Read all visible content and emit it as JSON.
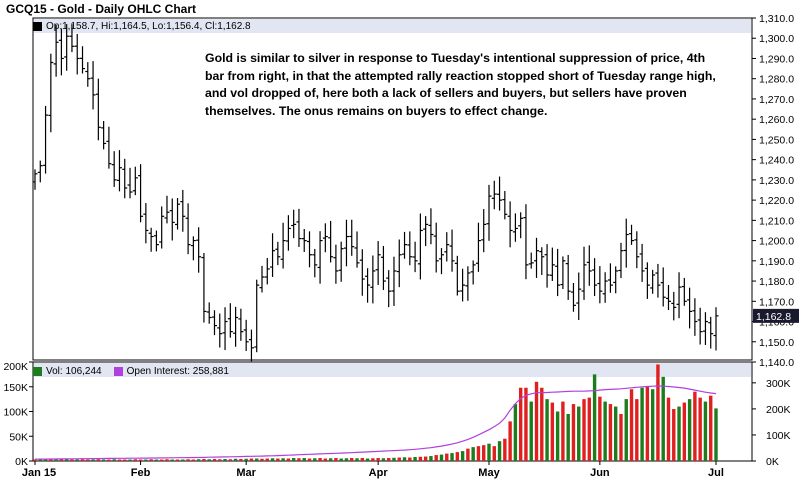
{
  "title": "GCQ15 - Gold - Daily OHLC Chart",
  "ohlc_legend": "Op:1,158.7, Hi:1,164.5, Lo:1,156.4, Cl:1,162.8",
  "annotation": "Gold is similar to silver in response to Tuesday's intentional suppression of price, 4th bar from right, in that the attempted rally reaction stopped short of Tuesday range high, and vol dropped of, here both a lack of sellers and buyers, but sellers have proven themselves.  The onus remains on buyers to effect change.",
  "colors": {
    "panel_bg": "#ffffff",
    "header_band": "#e1e6f2",
    "ohlc_bar": "#000000",
    "price_tag_bg": "#1a1a2e",
    "volume_up": "#1e7b1e",
    "volume_down": "#e02020",
    "open_interest": "#b040e0",
    "grid": "#d9d9d9",
    "border": "#000000",
    "outer_bg": "#ffffff"
  },
  "chart_data": [
    {
      "type": "ohlc",
      "title": "GCQ15 - Gold - Daily OHLC Chart",
      "x_tick_labels": [
        "Jan 15",
        "Feb",
        "Mar",
        "Apr",
        "May",
        "Jun",
        "Jul"
      ],
      "x_tick_days": [
        0,
        20,
        40,
        65,
        86,
        107,
        129
      ],
      "y_tick_labels": [
        "1,140.0",
        "1,150.0",
        "1,160.0",
        "1,170.0",
        "1,180.0",
        "1,190.0",
        "1,200.0",
        "1,210.0",
        "1,220.0",
        "1,230.0",
        "1,240.0",
        "1,250.0",
        "1,260.0",
        "1,270.0",
        "1,280.0",
        "1,290.0",
        "1,300.0",
        "1,310.0"
      ],
      "ylim": [
        1140,
        1310
      ],
      "last_price_label": "1,162.8",
      "last_price": 1162.8,
      "close_series": [
        1233,
        1237,
        1262,
        1288,
        1298,
        1290,
        1301,
        1296,
        1290,
        1285,
        1280,
        1272,
        1256,
        1248,
        1238,
        1230,
        1236,
        1226,
        1224,
        1231,
        1212,
        1205,
        1202,
        1198,
        1212,
        1214,
        1209,
        1218,
        1212,
        1198,
        1200,
        1192,
        1165,
        1162,
        1158,
        1154,
        1160,
        1155,
        1162,
        1155,
        1150,
        1147,
        1178,
        1182,
        1186,
        1195,
        1192,
        1200,
        1206,
        1208,
        1201,
        1200,
        1193,
        1188,
        1200,
        1202,
        1192,
        1185,
        1196,
        1202,
        1197,
        1189,
        1181,
        1178,
        1185,
        1193,
        1180,
        1175,
        1185,
        1193,
        1198,
        1192,
        1190,
        1205,
        1208,
        1203,
        1190,
        1193,
        1198,
        1190,
        1175,
        1178,
        1184,
        1188,
        1200,
        1208,
        1222,
        1223,
        1220,
        1213,
        1205,
        1206,
        1211,
        1188,
        1189,
        1195,
        1192,
        1183,
        1188,
        1178,
        1190,
        1175,
        1168,
        1176,
        1188,
        1185,
        1178,
        1175,
        1180,
        1178,
        1185,
        1195,
        1203,
        1200,
        1192,
        1185,
        1178,
        1183,
        1178,
        1172,
        1170,
        1167,
        1177,
        1170,
        1165,
        1160,
        1155,
        1160,
        1154,
        1162.8
      ]
    },
    {
      "type": "bar+line",
      "series": [
        {
          "name": "Vol: 106,244"
        },
        {
          "name": "Open Interest: 258,881"
        }
      ],
      "y_left_tick_labels": [
        "0K",
        "50K",
        "100K",
        "150K",
        "200K"
      ],
      "ylim_left": [
        0,
        200000
      ],
      "y_right_tick_labels": [
        "0K",
        "100K",
        "200K",
        "300K"
      ],
      "ylim_right": [
        0,
        380000
      ],
      "volume": [
        3000,
        3000,
        3500,
        3000,
        3500,
        3000,
        4000,
        3000,
        3000,
        3500,
        3000,
        3000,
        3500,
        3000,
        3000,
        3500,
        3000,
        3000,
        3000,
        3500,
        3000,
        3000,
        3500,
        3000,
        3000,
        3500,
        3000,
        3000,
        3000,
        3500,
        3000,
        3500,
        4000,
        3500,
        4000,
        3500,
        4000,
        3500,
        4500,
        4000,
        4500,
        5000,
        5000,
        4500,
        5000,
        5500,
        5000,
        5500,
        5000,
        6000,
        5500,
        6000,
        5000,
        5500,
        6000,
        5000,
        5500,
        6000,
        5000,
        5500,
        6000,
        5500,
        6000,
        5000,
        5500,
        6000,
        5500,
        6000,
        6500,
        7000,
        7500,
        7000,
        8000,
        8500,
        9000,
        10000,
        12000,
        13000,
        15000,
        16000,
        18000,
        20000,
        25000,
        28000,
        30000,
        32000,
        35000,
        30000,
        40000,
        45000,
        80000,
        115000,
        148000,
        148000,
        120000,
        160000,
        148000,
        125000,
        118000,
        100000,
        120000,
        95000,
        115000,
        110000,
        125000,
        128000,
        175000,
        130000,
        120000,
        115000,
        110000,
        95000,
        125000,
        145000,
        125000,
        148000,
        150000,
        145000,
        195000,
        170000,
        128000,
        105000,
        110000,
        118000,
        125000,
        140000,
        128000,
        120000,
        132000,
        106244
      ],
      "volume_up": [
        false,
        true,
        true,
        false,
        true,
        false,
        true,
        false,
        true,
        false,
        false,
        true,
        false,
        true,
        false,
        true,
        false,
        false,
        true,
        false,
        false,
        true,
        false,
        true,
        false,
        false,
        true,
        false,
        true,
        false,
        false,
        true,
        false,
        true,
        false,
        false,
        true,
        false,
        true,
        false,
        true,
        false,
        true,
        false,
        false,
        true,
        false,
        true,
        false,
        true,
        false,
        true,
        false,
        true,
        false,
        false,
        true,
        false,
        true,
        true,
        false,
        true,
        false,
        true,
        false,
        false,
        true,
        false,
        true,
        false,
        true,
        false,
        true,
        false,
        false,
        true,
        false,
        true,
        false,
        true,
        false,
        true,
        false,
        true,
        false,
        false,
        true,
        false,
        true,
        false,
        false,
        true,
        false,
        false,
        true,
        false,
        false,
        true,
        false,
        true,
        false,
        true,
        false,
        true,
        false,
        false,
        true,
        false,
        true,
        false,
        true,
        false,
        true,
        false,
        false,
        true,
        false,
        true,
        false,
        true,
        false,
        false,
        true,
        false,
        true,
        false,
        false,
        true,
        false,
        true
      ],
      "open_interest": [
        7000,
        7200,
        7400,
        7600,
        7800,
        8000,
        8200,
        8400,
        8600,
        8800,
        9000,
        9200,
        9400,
        9600,
        9800,
        10000,
        10200,
        10400,
        10600,
        10800,
        11000,
        11200,
        11400,
        11600,
        11800,
        12000,
        12200,
        12500,
        12800,
        13000,
        13300,
        13600,
        14000,
        14400,
        14800,
        15200,
        15600,
        16000,
        16500,
        17000,
        17500,
        18000,
        18500,
        19000,
        19500,
        20000,
        20800,
        21600,
        22400,
        23200,
        24000,
        24800,
        25600,
        26400,
        27200,
        28000,
        28800,
        29600,
        30400,
        31200,
        32000,
        33000,
        34000,
        35000,
        36000,
        37000,
        38000,
        39000,
        40000,
        41000,
        42000,
        43500,
        45000,
        47000,
        49000,
        51000,
        54000,
        57000,
        61000,
        65000,
        70000,
        76000,
        83000,
        91000,
        100000,
        110000,
        120000,
        132000,
        145000,
        165000,
        195000,
        220000,
        240000,
        252000,
        258000,
        262000,
        262000,
        263000,
        264000,
        265000,
        266000,
        267000,
        268000,
        268000,
        268000,
        269000,
        270000,
        272000,
        274000,
        275000,
        276000,
        277000,
        279000,
        281000,
        283000,
        285000,
        286000,
        287000,
        288000,
        287000,
        286000,
        284000,
        282000,
        280000,
        276000,
        272000,
        268000,
        264000,
        261000,
        258881
      ],
      "x_tick_labels": [
        "Jan 15",
        "Feb",
        "Mar",
        "Apr",
        "May",
        "Jun",
        "Jul"
      ]
    }
  ]
}
